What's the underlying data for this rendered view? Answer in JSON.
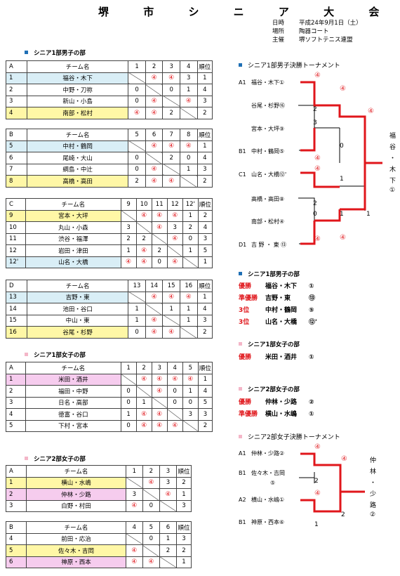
{
  "title": "堺 市 シ ニ ア 大 会",
  "info": [
    {
      "k": "日時",
      "v": "平成24年9月1日（土）"
    },
    {
      "k": "場所",
      "v": "陶器コート"
    },
    {
      "k": "主催",
      "v": "堺ソフトテニス連盟"
    }
  ],
  "sections": {
    "men1": "シニア1部男子の部",
    "men1_bracket": "シニア1部男子決勝トーナメント",
    "women1": "シニア1部女子の部",
    "women2": "シニア2部女子の部",
    "results_men1": "シニア1部男子の部",
    "results_women1": "シニア1部女子の部",
    "results_women2": "シニア2部女子の部",
    "women2_bracket": "シニア2部女子決勝トーナメント"
  },
  "team_header": "チーム名",
  "rank_header": "順位",
  "groups": [
    {
      "id": "A",
      "cols": [
        "1",
        "2",
        "3",
        "4"
      ],
      "rows": [
        {
          "no": "1",
          "team": "福谷・木下",
          "hl": "blue",
          "cells": [
            "",
            "④",
            "④",
            "3"
          ],
          "rank": "1"
        },
        {
          "no": "2",
          "team": "中野・刀祢",
          "hl": "",
          "cells": [
            "0",
            "",
            "0",
            "1"
          ],
          "rank": "4"
        },
        {
          "no": "3",
          "team": "新山・小島",
          "hl": "",
          "cells": [
            "0",
            "④",
            "",
            "④"
          ],
          "rank": "3"
        },
        {
          "no": "4",
          "team": "南部・松村",
          "hl": "yel",
          "cells": [
            "④",
            "④",
            "2",
            ""
          ],
          "rank": "2"
        }
      ]
    },
    {
      "id": "B",
      "cols": [
        "5",
        "6",
        "7",
        "8"
      ],
      "rows": [
        {
          "no": "5",
          "team": "中村・鶴岡",
          "hl": "blue",
          "cells": [
            "",
            "④",
            "④",
            "④"
          ],
          "rank": "1"
        },
        {
          "no": "6",
          "team": "尾崎・大山",
          "hl": "",
          "cells": [
            "0",
            "",
            "2",
            "0"
          ],
          "rank": "4"
        },
        {
          "no": "7",
          "team": "綱島・中辻",
          "hl": "",
          "cells": [
            "0",
            "④",
            "",
            "1"
          ],
          "rank": "3"
        },
        {
          "no": "8",
          "team": "高橋・高田",
          "hl": "yel",
          "cells": [
            "2",
            "④",
            "④",
            ""
          ],
          "rank": "2"
        }
      ]
    },
    {
      "id": "C",
      "cols": [
        "9",
        "10",
        "11",
        "12",
        "12'"
      ],
      "rows": [
        {
          "no": "9",
          "team": "宮本・大坪",
          "hl": "yel",
          "cells": [
            "",
            "④",
            "④",
            "④",
            "1"
          ],
          "rank": "2"
        },
        {
          "no": "10",
          "team": "丸山・小森",
          "hl": "",
          "cells": [
            "3",
            "",
            "④",
            "3",
            "2"
          ],
          "rank": "4"
        },
        {
          "no": "11",
          "team": "渋谷・福澤",
          "hl": "",
          "cells": [
            "2",
            "2",
            "",
            "④",
            "0"
          ],
          "rank": "3"
        },
        {
          "no": "12",
          "team": "岩田・津田",
          "hl": "",
          "cells": [
            "1",
            "④",
            "2",
            "",
            "1"
          ],
          "rank": "5"
        },
        {
          "no": "12'",
          "team": "山名・大橋",
          "hl": "blue",
          "cells": [
            "④",
            "④",
            "0",
            "④",
            ""
          ],
          "rank": "1"
        }
      ]
    },
    {
      "id": "D",
      "cols": [
        "13",
        "14",
        "15",
        "16"
      ],
      "rows": [
        {
          "no": "13",
          "team": "吉野・東",
          "hl": "blue",
          "cells": [
            "",
            "④",
            "④",
            "④"
          ],
          "rank": "1"
        },
        {
          "no": "14",
          "team": "池田・谷口",
          "hl": "",
          "cells": [
            "1",
            "",
            "1",
            "1"
          ],
          "rank": "4"
        },
        {
          "no": "15",
          "team": "中山・東",
          "hl": "",
          "cells": [
            "1",
            "④",
            "",
            "1"
          ],
          "rank": "3"
        },
        {
          "no": "16",
          "team": "谷尾・杉野",
          "hl": "yel",
          "cells": [
            "0",
            "④",
            "④",
            ""
          ],
          "rank": "2"
        }
      ]
    },
    {
      "id": "A",
      "cols": [
        "1",
        "2",
        "3",
        "4",
        "5"
      ],
      "rows": [
        {
          "no": "1",
          "team": "米田・酒井",
          "hl": "pink",
          "cells": [
            "",
            "④",
            "④",
            "④",
            "④"
          ],
          "rank": "1"
        },
        {
          "no": "2",
          "team": "福田・中野",
          "hl": "",
          "cells": [
            "0",
            "",
            "④",
            "0",
            "1"
          ],
          "rank": "4"
        },
        {
          "no": "3",
          "team": "日名・高部",
          "hl": "",
          "cells": [
            "0",
            "1",
            "",
            "0",
            "0"
          ],
          "rank": "5"
        },
        {
          "no": "4",
          "team": "徳富・谷口",
          "hl": "",
          "cells": [
            "1",
            "④",
            "④",
            "",
            "3"
          ],
          "rank": "3"
        },
        {
          "no": "5",
          "team": "下村・宮本",
          "hl": "",
          "cells": [
            "0",
            "④",
            "④",
            "④",
            ""
          ],
          "rank": "2"
        }
      ]
    },
    {
      "id": "A",
      "cols": [
        "1",
        "2",
        "3"
      ],
      "rows": [
        {
          "no": "1",
          "team": "横山・水嶋",
          "hl": "yel",
          "cells": [
            "",
            "④",
            "3"
          ],
          "rank": "2"
        },
        {
          "no": "2",
          "team": "仲林・少路",
          "hl": "pink",
          "cells": [
            "3",
            "",
            "④"
          ],
          "rank": "1"
        },
        {
          "no": "3",
          "team": "白野・村田",
          "hl": "",
          "cells": [
            "④",
            "0",
            ""
          ],
          "rank": "3"
        }
      ]
    },
    {
      "id": "B",
      "cols": [
        "4",
        "5",
        "6"
      ],
      "rows": [
        {
          "no": "4",
          "team": "前田・応治",
          "hl": "",
          "cells": [
            "",
            "0",
            "1"
          ],
          "rank": "3"
        },
        {
          "no": "5",
          "team": "佐々木・吉岡",
          "hl": "yel",
          "cells": [
            "④",
            "",
            "2"
          ],
          "rank": "2"
        },
        {
          "no": "6",
          "team": "神原・西本",
          "hl": "pink",
          "cells": [
            "④",
            "④",
            ""
          ],
          "rank": "1"
        }
      ]
    }
  ],
  "men_bracket": {
    "entries": [
      {
        "seed": "A1",
        "team": "福谷・木下①"
      },
      {
        "seed": "",
        "team": "谷尾・杉野⑯"
      },
      {
        "seed": "",
        "team": "宮本・大坪⑨"
      },
      {
        "seed": "B1",
        "team": "中村・鶴岡⑤"
      },
      {
        "seed": "C1",
        "team": "山名・大橋⑫'"
      },
      {
        "seed": "",
        "team": "高橋・高田⑧"
      },
      {
        "seed": "",
        "team": "南部・松村④"
      },
      {
        "seed": "D1",
        "team": "吉 野 ・ 東 ⑬"
      }
    ],
    "scores": [
      "④",
      "④",
      "2",
      "3",
      "0",
      "④",
      "④",
      "④",
      "1",
      "2",
      "0",
      "④",
      "④",
      "1",
      "1",
      "④"
    ],
    "winner": [
      "福",
      "谷",
      "・",
      "木",
      "下",
      "①"
    ]
  },
  "results": {
    "men1": [
      {
        "place": "優勝",
        "team": "福谷・木下",
        "no": "①"
      },
      {
        "place": "準優勝",
        "team": "吉野・東",
        "no": "⑬"
      },
      {
        "place": "3位",
        "team": "中村・鶴岡",
        "no": "⑤"
      },
      {
        "place": "3位",
        "team": "山名・大橋",
        "no": "⑫'"
      }
    ],
    "women1": [
      {
        "place": "優勝",
        "team": "米田・酒井",
        "no": "①"
      }
    ],
    "women2": [
      {
        "place": "優勝",
        "team": "仲林・少路",
        "no": "②"
      },
      {
        "place": "準優勝",
        "team": "横山・水嶋",
        "no": "①"
      }
    ]
  },
  "women_bracket": {
    "entries": [
      {
        "seed": "A1",
        "team": "仲林・少路②"
      },
      {
        "seed": "B1",
        "team": "佐々木・吉岡"
      },
      {
        "seed": "",
        "team": "⑤"
      },
      {
        "seed": "A2",
        "team": "横山・水嶋①"
      },
      {
        "seed": "B1",
        "team": "神原・西本⑥"
      }
    ],
    "scores": [
      "④",
      "④",
      "2",
      "④",
      "2",
      "1",
      "④"
    ],
    "winner": [
      "仲",
      "林",
      "・",
      "少",
      "路",
      "②"
    ]
  }
}
